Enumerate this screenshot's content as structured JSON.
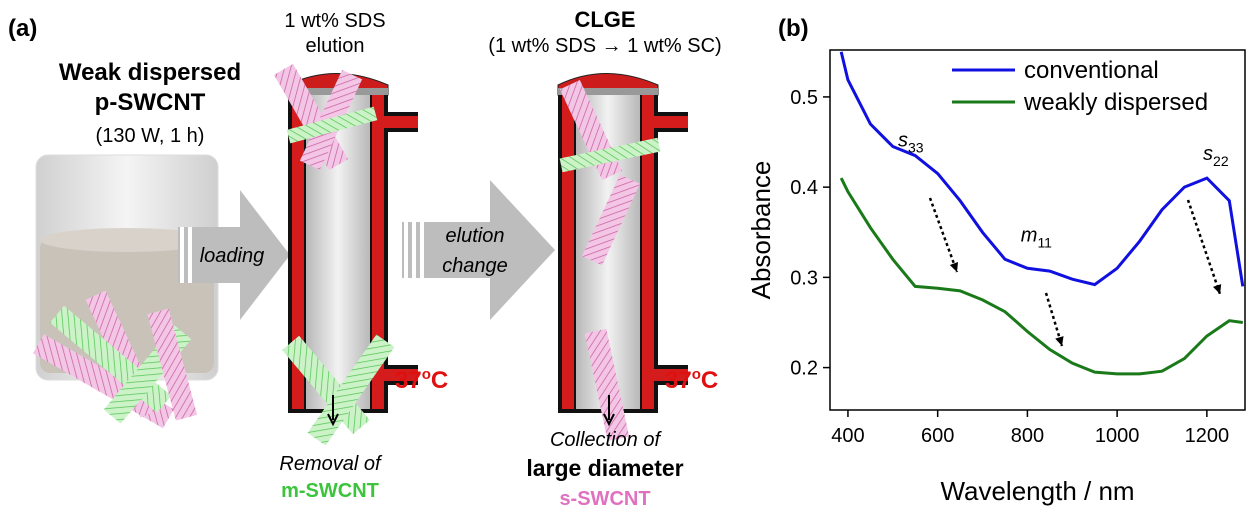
{
  "panel_a": {
    "label": "(a)",
    "sample": {
      "line1": "Weak dispersed",
      "line2": "p-SWCNT",
      "condition": "(130 W, 1 h)"
    },
    "step1": "loading",
    "column1": {
      "eluent_line1": "1 wt% SDS",
      "eluent_line2": "elution",
      "temperature": {
        "value": "37",
        "sup": "o",
        "unit": "C"
      },
      "output_line1": "Removal of",
      "output_line2": "m-SWCNT"
    },
    "step2": {
      "line1": "elution",
      "line2": "change"
    },
    "column2": {
      "title": "CLGE",
      "eluent": "(1 wt% SDS → 1 wt% SC)",
      "temperature": {
        "value": "37",
        "sup": "o",
        "unit": "C"
      },
      "output_line1": "Collection of",
      "output_line2": "large diameter",
      "output_line3": "s-SWCNT"
    }
  },
  "chart_data": {
    "type": "line",
    "panel_label": "(b)",
    "x_label": "Wavelength / nm",
    "y_label": "Absorbance",
    "xlim": [
      360,
      1285
    ],
    "ylim": [
      0.153,
      0.552
    ],
    "xticks": [
      400,
      600,
      800,
      1000,
      1200
    ],
    "yticks": [
      0.2,
      0.3,
      0.4,
      0.5
    ],
    "x": [
      385,
      400,
      450,
      500,
      550,
      600,
      650,
      700,
      750,
      800,
      850,
      900,
      950,
      1000,
      1050,
      1100,
      1150,
      1200,
      1250,
      1280
    ],
    "series": [
      {
        "name": "conventional",
        "color": "#1010e0",
        "values": [
          0.55,
          0.519,
          0.47,
          0.445,
          0.435,
          0.415,
          0.385,
          0.35,
          0.32,
          0.31,
          0.307,
          0.298,
          0.292,
          0.31,
          0.34,
          0.375,
          0.4,
          0.41,
          0.385,
          0.29
        ]
      },
      {
        "name": "weakly dispersed",
        "color": "#1a7a1a",
        "values": [
          0.41,
          0.395,
          0.355,
          0.32,
          0.29,
          0.288,
          0.285,
          0.275,
          0.262,
          0.24,
          0.22,
          0.205,
          0.195,
          0.193,
          0.193,
          0.196,
          0.21,
          0.235,
          0.252,
          0.25
        ]
      }
    ],
    "annotations": [
      {
        "text": "s",
        "sub": "33",
        "x": 540,
        "y": 0.445
      },
      {
        "text": "m",
        "sub": "11",
        "x": 820,
        "y": 0.34
      },
      {
        "text": "s",
        "sub": "22",
        "x": 1220,
        "y": 0.43
      }
    ]
  }
}
